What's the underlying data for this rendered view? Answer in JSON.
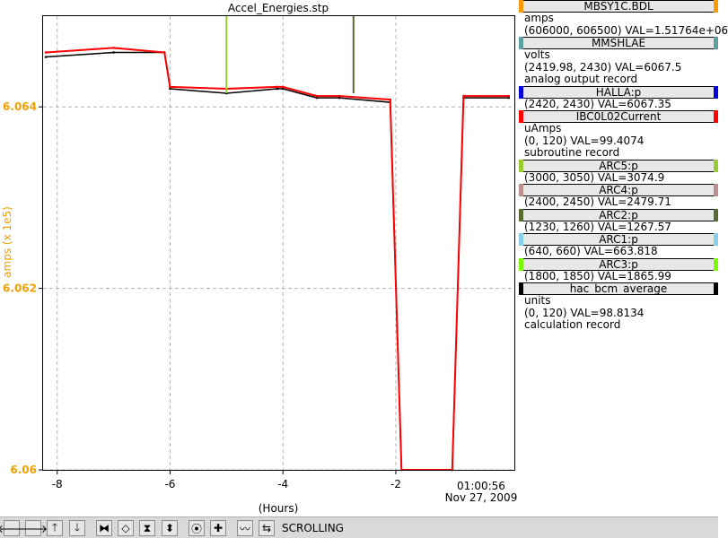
{
  "chart_data": {
    "type": "line",
    "title": "Accel_Energies.stp",
    "xlabel": "(Hours)",
    "ylabel": "amps (x 1e5)",
    "ylim": [
      6.06,
      6.065
    ],
    "xlim": [
      -8.25,
      0.1
    ],
    "x_ticks": [
      "-8",
      "-6",
      "-4",
      "-2"
    ],
    "y_ticks": [
      "6.064",
      "6.062",
      "6.06"
    ],
    "time_label": "01:00:56",
    "date_label": "Nov 27, 2009",
    "grid": true,
    "series": [
      {
        "name": "MBSY1C.BDL",
        "color": "#000000",
        "x": [
          -8.2,
          -7.0,
          -6.1,
          -6.0,
          -5.0,
          -4.1,
          -4.0,
          -3.4,
          -3.0,
          -2.1,
          -1.9,
          -1.0,
          -0.8,
          0.0
        ],
        "values": [
          6.06455,
          6.0646,
          6.0646,
          6.0642,
          6.06415,
          6.0642,
          6.0642,
          6.0641,
          6.0641,
          6.06405,
          6.06,
          6.06,
          6.0641,
          6.0641
        ]
      },
      {
        "name": "IBC0L02Current",
        "color": "#ff0000",
        "x": [
          -8.2,
          -7.0,
          -6.1,
          -6.0,
          -5.0,
          -4.1,
          -4.0,
          -3.4,
          -3.0,
          -2.1,
          -1.9,
          -1.0,
          -0.8,
          0.0
        ],
        "values": [
          6.0646,
          6.06465,
          6.0646,
          6.06422,
          6.0642,
          6.06422,
          6.06422,
          6.06412,
          6.06412,
          6.06408,
          6.06,
          6.06,
          6.06412,
          6.06412
        ]
      },
      {
        "name": "ARC5:p",
        "color": "#99cc33",
        "x": [
          -5.0
        ],
        "values": [
          6.065
        ]
      },
      {
        "name": "ARC2:p",
        "color": "#556b2f",
        "x": [
          -2.75
        ],
        "values": [
          6.065
        ]
      }
    ]
  },
  "legend": [
    {
      "name": "MBSY1C.BDL",
      "color": "#ff9900",
      "lines": [
        "amps",
        "(606000, 606500)  VAL=1.51764e+06"
      ]
    },
    {
      "name": "MMSHLAE",
      "color": "#5f9ea0",
      "lines": [
        "volts",
        "(2419.98, 2430)  VAL=6067.5",
        "analog output record"
      ]
    },
    {
      "name": "HALLA:p",
      "color": "#0000dd",
      "lines": [
        "(2420, 2430)  VAL=6067.35"
      ]
    },
    {
      "name": "IBC0L02Current",
      "color": "#ff0000",
      "lines": [
        "uAmps",
        "(0, 120)  VAL=99.4074",
        "subroutine record"
      ]
    },
    {
      "name": "ARC5:p",
      "color": "#99cc33",
      "lines": [
        "(3000, 3050)  VAL=3074.9"
      ]
    },
    {
      "name": "ARC4:p",
      "color": "#bc8f8f",
      "lines": [
        "(2400, 2450)  VAL=2479.71"
      ]
    },
    {
      "name": "ARC2:p",
      "color": "#556b2f",
      "lines": [
        "(1230, 1260)  VAL=1267.57"
      ]
    },
    {
      "name": "ARC1:p",
      "color": "#87ceeb",
      "lines": [
        "(640, 660)  VAL=663.818"
      ]
    },
    {
      "name": "ARC3:p",
      "color": "#7cfc00",
      "lines": [
        "(1800, 1850)  VAL=1865.99"
      ]
    },
    {
      "name": "hac_bcm_average",
      "color": "#000000",
      "lines": [
        "units",
        "(0, 120)  VAL=98.8134",
        "calculation record"
      ]
    }
  ],
  "toolbar": {
    "status": "SCROLLING",
    "buttons": [
      {
        "name": "scroll-left-icon",
        "glyph": "🡐"
      },
      {
        "name": "scroll-right-icon",
        "glyph": "🡒"
      },
      {
        "name": "scroll-up-icon",
        "glyph": "🡑"
      },
      {
        "name": "scroll-down-icon",
        "glyph": "🡓"
      },
      {
        "name": "zoom-in-x-icon",
        "glyph": "⧓"
      },
      {
        "name": "zoom-out-x-icon",
        "glyph": "◇"
      },
      {
        "name": "zoom-in-y-icon",
        "glyph": "⧗"
      },
      {
        "name": "zoom-out-y-icon",
        "glyph": "⬍"
      },
      {
        "name": "record-icon",
        "glyph": "⦿"
      },
      {
        "name": "add-icon",
        "glyph": "✚"
      },
      {
        "name": "autoscale-icon",
        "glyph": "〰"
      },
      {
        "name": "scroll-toggle-icon",
        "glyph": "⇆"
      }
    ]
  }
}
